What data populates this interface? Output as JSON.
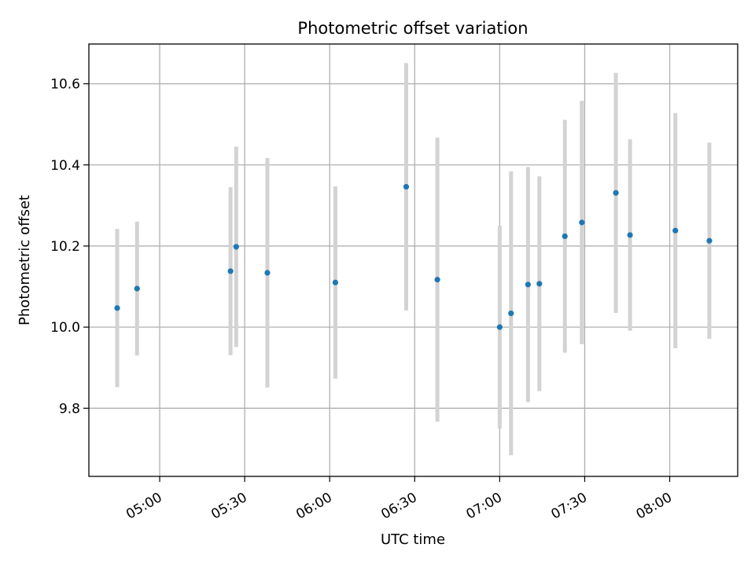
{
  "chart_data": {
    "type": "scatter",
    "title": "Photometric offset variation",
    "xlabel": "UTC time",
    "ylabel": "Photometric offset",
    "xlim": [
      "04:35",
      "08:24"
    ],
    "ylim": [
      9.632,
      10.698
    ],
    "x_ticks": [
      "05:00",
      "05:30",
      "06:00",
      "06:30",
      "07:00",
      "07:30",
      "08:00"
    ],
    "y_ticks": [
      9.8,
      10.0,
      10.2,
      10.4,
      10.6
    ],
    "y_tick_labels": [
      "9.8",
      "10.0",
      "10.2",
      "10.4",
      "10.6"
    ],
    "grid": true,
    "error_bars": true,
    "colors": {
      "points": "#1f77b4",
      "error_bars": "#d3d3d3",
      "grid": "#b0b0b0"
    },
    "series": [
      {
        "x": [
          "04:45",
          "04:52",
          "05:25",
          "05:27",
          "05:38",
          "06:02",
          "06:27",
          "06:38",
          "07:00",
          "07:04",
          "07:10",
          "07:14",
          "07:23",
          "07:29",
          "07:41",
          "07:46",
          "08:02",
          "08:14"
        ],
        "y": [
          10.047,
          10.095,
          10.138,
          10.198,
          10.134,
          10.11,
          10.346,
          10.117,
          10.0,
          10.034,
          10.105,
          10.107,
          10.224,
          10.258,
          10.331,
          10.227,
          10.238,
          10.213
        ],
        "yerr": [
          0.195,
          0.165,
          0.207,
          0.247,
          0.283,
          0.237,
          0.305,
          0.35,
          0.25,
          0.35,
          0.29,
          0.265,
          0.287,
          0.3,
          0.296,
          0.236,
          0.29,
          0.242
        ]
      }
    ]
  }
}
